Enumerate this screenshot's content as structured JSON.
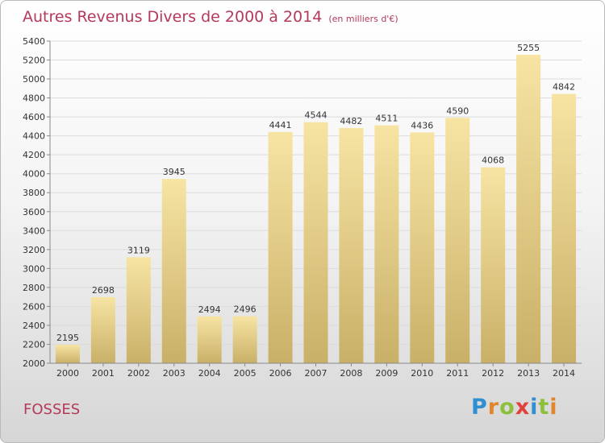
{
  "title": "Autres Revenus Divers de 2000 à 2014",
  "title_unit": "(en milliers d'€)",
  "commune": "FOSSES",
  "brand": {
    "letters": [
      "P",
      "r",
      "o",
      "x",
      "i",
      "t",
      "i"
    ],
    "colors": [
      "#2f8fd0",
      "#e2852b",
      "#8cbf3a",
      "#e0433b",
      "#2f8fd0",
      "#8cbf3a",
      "#e2852b"
    ]
  },
  "colors": {
    "accent": "#b5395a",
    "bar_light": "#f7e4a3",
    "bar_dark": "#c9b068"
  },
  "chart_data": {
    "type": "bar",
    "categories": [
      "2000",
      "2001",
      "2002",
      "2003",
      "2004",
      "2005",
      "2006",
      "2007",
      "2008",
      "2009",
      "2010",
      "2011",
      "2012",
      "2013",
      "2014"
    ],
    "values": [
      2195,
      2698,
      3119,
      3945,
      2494,
      2496,
      4441,
      4544,
      4482,
      4511,
      4436,
      4590,
      4068,
      5255,
      4842
    ],
    "ylim": [
      2000,
      5400
    ],
    "yticks": [
      2000,
      2200,
      2400,
      2600,
      2800,
      3000,
      3200,
      3400,
      3600,
      3800,
      4000,
      4200,
      4400,
      4600,
      4800,
      5000,
      5200,
      5400
    ],
    "grid": "horizontal",
    "data_labels": true
  }
}
